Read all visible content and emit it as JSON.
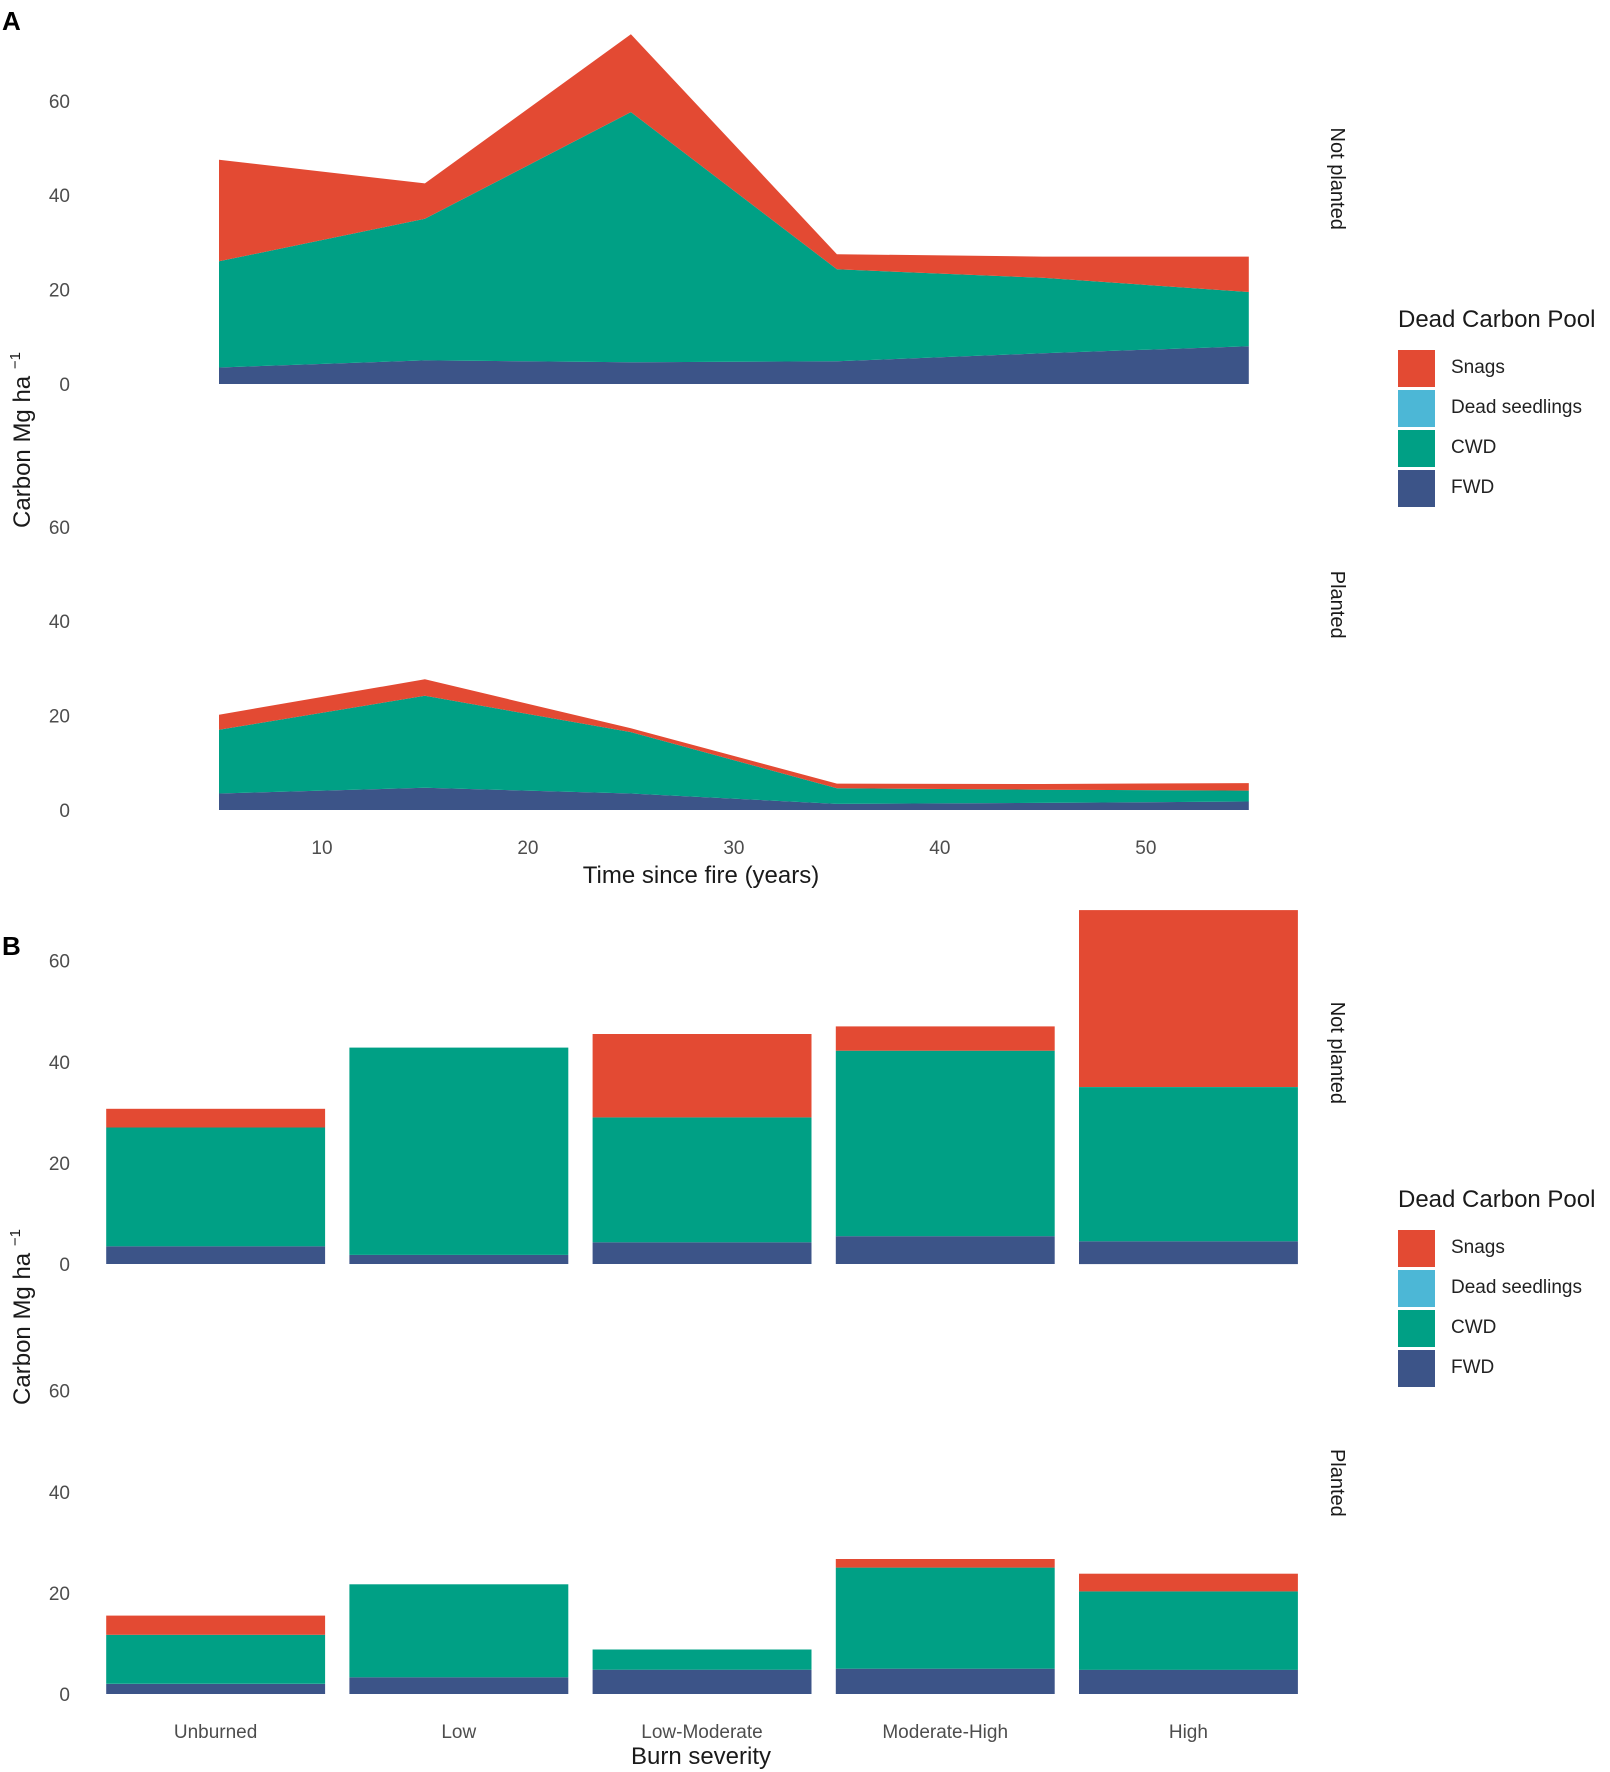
{
  "colors": {
    "Snags": "#e34a33",
    "Dead seedlings": "#4cb7d6",
    "CWD": "#00a085",
    "FWD": "#3c5488",
    "text": "#4d4d4d"
  },
  "chart_data": [
    {
      "panel": "A",
      "type": "area",
      "stacked": true,
      "xlabel": "Time since fire (years)",
      "ylabel": "Carbon Mg ha",
      "ylabel_superscript": "−1",
      "x": [
        5,
        15,
        25,
        35,
        45,
        55
      ],
      "xlim": [
        0,
        57
      ],
      "x_ticks": [
        "10",
        "20",
        "30",
        "40",
        "50"
      ],
      "ylim": [
        0,
        75
      ],
      "y_ticks": [
        "0",
        "20",
        "40",
        "60"
      ],
      "stack_order": [
        "FWD",
        "CWD",
        "Dead seedlings",
        "Snags"
      ],
      "facets": [
        {
          "label": "Not planted",
          "series": [
            {
              "name": "FWD",
              "values": [
                3.5,
                5,
                4.6,
                4.8,
                6.5,
                8
              ]
            },
            {
              "name": "CWD",
              "values": [
                22.5,
                30,
                53,
                19.5,
                16,
                11.5
              ]
            },
            {
              "name": "Dead seedlings",
              "values": [
                0,
                0,
                0,
                0,
                0,
                0
              ]
            },
            {
              "name": "Snags",
              "values": [
                21.5,
                7.5,
                16.5,
                3.2,
                4.5,
                7.5
              ]
            }
          ]
        },
        {
          "label": "Planted",
          "series": [
            {
              "name": "FWD",
              "values": [
                3.5,
                4.7,
                3.5,
                1.3,
                1.5,
                1.8
              ]
            },
            {
              "name": "CWD",
              "values": [
                13.5,
                19.5,
                13,
                3.3,
                2.8,
                2.3
              ]
            },
            {
              "name": "Dead seedlings",
              "values": [
                0,
                0,
                0,
                0,
                0,
                0
              ]
            },
            {
              "name": "Snags",
              "values": [
                3.2,
                3.5,
                0.8,
                1,
                1.2,
                1.6
              ]
            }
          ]
        }
      ],
      "legend": {
        "title": "Dead Carbon Pool",
        "items": [
          "Snags",
          "Dead seedlings",
          "CWD",
          "FWD"
        ]
      }
    },
    {
      "panel": "B",
      "type": "bar",
      "stacked": true,
      "xlabel": "Burn severity",
      "ylabel": "Carbon Mg ha",
      "ylabel_superscript": "−1",
      "categories": [
        "Unburned",
        "Low",
        "Low-Moderate",
        "Moderate-High",
        "High"
      ],
      "ylim": [
        0,
        72
      ],
      "y_ticks": [
        "0",
        "20",
        "40",
        "60"
      ],
      "stack_order": [
        "FWD",
        "CWD",
        "Dead seedlings",
        "Snags"
      ],
      "facets": [
        {
          "label": "Not planted",
          "series": [
            {
              "name": "FWD",
              "values": [
                3.5,
                1.8,
                4.3,
                5.5,
                4.5
              ]
            },
            {
              "name": "CWD",
              "values": [
                23.5,
                41,
                24.7,
                36.7,
                30.5
              ]
            },
            {
              "name": "Dead seedlings",
              "values": [
                0,
                0,
                0,
                0,
                0
              ]
            },
            {
              "name": "Snags",
              "values": [
                3.7,
                0,
                16.5,
                4.8,
                35
              ]
            }
          ]
        },
        {
          "label": "Planted",
          "series": [
            {
              "name": "FWD",
              "values": [
                2,
                3.3,
                4.8,
                5,
                4.8
              ]
            },
            {
              "name": "CWD",
              "values": [
                9.7,
                18.4,
                4,
                20,
                15.5
              ]
            },
            {
              "name": "Dead seedlings",
              "values": [
                0,
                0,
                0,
                0,
                0
              ]
            },
            {
              "name": "Snags",
              "values": [
                3.8,
                0,
                0,
                1.7,
                3.5
              ]
            }
          ]
        }
      ],
      "legend": {
        "title": "Dead Carbon Pool",
        "items": [
          "Snags",
          "Dead seedlings",
          "CWD",
          "FWD"
        ]
      }
    }
  ]
}
